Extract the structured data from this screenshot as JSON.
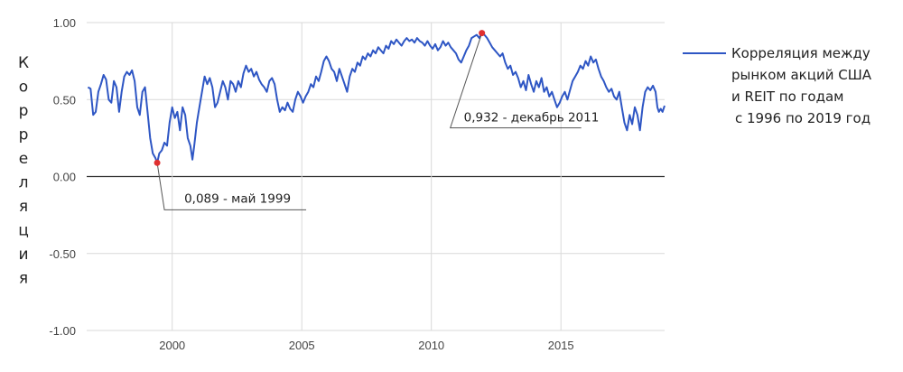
{
  "chart_data": {
    "type": "line",
    "ylabel": "Корреляция",
    "xlim": [
      1996.7,
      2019.0
    ],
    "ylim": [
      -1.0,
      1.0
    ],
    "grid": true,
    "legend_position": "right",
    "y_ticks": [
      {
        "value": 1.0,
        "label": "1.00"
      },
      {
        "value": 0.5,
        "label": "0.50"
      },
      {
        "value": 0.0,
        "label": "0.00"
      },
      {
        "value": -0.5,
        "label": "-0.50"
      },
      {
        "value": -1.0,
        "label": "-1.00"
      }
    ],
    "x_ticks": [
      {
        "value": 2000,
        "label": "2000"
      },
      {
        "value": 2005,
        "label": "2005"
      },
      {
        "value": 2010,
        "label": "2010"
      },
      {
        "value": 2015,
        "label": "2015"
      }
    ],
    "series": [
      {
        "name": "Корреляция между рынком акций США и REIT по годам с 1996 по 2019 год",
        "legend_lines": [
          "Корреляция между",
          "рынком акций США",
          "и REIT по годам",
          "с 1996 по 2019 год"
        ],
        "color": "#2e56c4",
        "points": [
          [
            1996.75,
            0.58
          ],
          [
            1996.85,
            0.57
          ],
          [
            1996.95,
            0.4
          ],
          [
            1997.05,
            0.42
          ],
          [
            1997.15,
            0.55
          ],
          [
            1997.25,
            0.6
          ],
          [
            1997.35,
            0.66
          ],
          [
            1997.45,
            0.63
          ],
          [
            1997.55,
            0.5
          ],
          [
            1997.65,
            0.48
          ],
          [
            1997.75,
            0.62
          ],
          [
            1997.85,
            0.58
          ],
          [
            1997.95,
            0.42
          ],
          [
            1998.05,
            0.55
          ],
          [
            1998.15,
            0.65
          ],
          [
            1998.25,
            0.68
          ],
          [
            1998.35,
            0.66
          ],
          [
            1998.45,
            0.69
          ],
          [
            1998.55,
            0.62
          ],
          [
            1998.65,
            0.45
          ],
          [
            1998.75,
            0.4
          ],
          [
            1998.85,
            0.55
          ],
          [
            1998.95,
            0.58
          ],
          [
            1999.05,
            0.42
          ],
          [
            1999.15,
            0.25
          ],
          [
            1999.25,
            0.15
          ],
          [
            1999.35,
            0.12
          ],
          [
            1999.42,
            0.089
          ],
          [
            1999.5,
            0.15
          ],
          [
            1999.6,
            0.17
          ],
          [
            1999.7,
            0.22
          ],
          [
            1999.8,
            0.2
          ],
          [
            1999.9,
            0.35
          ],
          [
            2000.0,
            0.45
          ],
          [
            2000.1,
            0.38
          ],
          [
            2000.2,
            0.42
          ],
          [
            2000.3,
            0.3
          ],
          [
            2000.4,
            0.45
          ],
          [
            2000.5,
            0.4
          ],
          [
            2000.6,
            0.25
          ],
          [
            2000.7,
            0.2
          ],
          [
            2000.78,
            0.11
          ],
          [
            2000.85,
            0.2
          ],
          [
            2000.95,
            0.35
          ],
          [
            2001.05,
            0.45
          ],
          [
            2001.15,
            0.55
          ],
          [
            2001.25,
            0.65
          ],
          [
            2001.35,
            0.6
          ],
          [
            2001.45,
            0.64
          ],
          [
            2001.55,
            0.58
          ],
          [
            2001.65,
            0.45
          ],
          [
            2001.75,
            0.48
          ],
          [
            2001.85,
            0.55
          ],
          [
            2001.95,
            0.62
          ],
          [
            2002.05,
            0.58
          ],
          [
            2002.15,
            0.5
          ],
          [
            2002.25,
            0.62
          ],
          [
            2002.35,
            0.6
          ],
          [
            2002.45,
            0.55
          ],
          [
            2002.55,
            0.62
          ],
          [
            2002.65,
            0.58
          ],
          [
            2002.75,
            0.67
          ],
          [
            2002.85,
            0.72
          ],
          [
            2002.95,
            0.68
          ],
          [
            2003.05,
            0.7
          ],
          [
            2003.15,
            0.65
          ],
          [
            2003.25,
            0.68
          ],
          [
            2003.35,
            0.63
          ],
          [
            2003.45,
            0.6
          ],
          [
            2003.55,
            0.58
          ],
          [
            2003.65,
            0.55
          ],
          [
            2003.75,
            0.62
          ],
          [
            2003.85,
            0.64
          ],
          [
            2003.95,
            0.6
          ],
          [
            2004.05,
            0.5
          ],
          [
            2004.15,
            0.42
          ],
          [
            2004.25,
            0.45
          ],
          [
            2004.35,
            0.43
          ],
          [
            2004.45,
            0.48
          ],
          [
            2004.55,
            0.44
          ],
          [
            2004.65,
            0.42
          ],
          [
            2004.75,
            0.5
          ],
          [
            2004.85,
            0.55
          ],
          [
            2004.95,
            0.52
          ],
          [
            2005.05,
            0.48
          ],
          [
            2005.15,
            0.52
          ],
          [
            2005.25,
            0.55
          ],
          [
            2005.35,
            0.6
          ],
          [
            2005.45,
            0.58
          ],
          [
            2005.55,
            0.65
          ],
          [
            2005.65,
            0.62
          ],
          [
            2005.75,
            0.68
          ],
          [
            2005.85,
            0.75
          ],
          [
            2005.95,
            0.78
          ],
          [
            2006.05,
            0.75
          ],
          [
            2006.15,
            0.7
          ],
          [
            2006.25,
            0.68
          ],
          [
            2006.35,
            0.62
          ],
          [
            2006.45,
            0.7
          ],
          [
            2006.55,
            0.65
          ],
          [
            2006.65,
            0.6
          ],
          [
            2006.75,
            0.55
          ],
          [
            2006.85,
            0.65
          ],
          [
            2006.95,
            0.7
          ],
          [
            2007.05,
            0.68
          ],
          [
            2007.15,
            0.74
          ],
          [
            2007.25,
            0.72
          ],
          [
            2007.35,
            0.78
          ],
          [
            2007.45,
            0.76
          ],
          [
            2007.55,
            0.8
          ],
          [
            2007.65,
            0.78
          ],
          [
            2007.75,
            0.82
          ],
          [
            2007.85,
            0.8
          ],
          [
            2007.95,
            0.84
          ],
          [
            2008.05,
            0.82
          ],
          [
            2008.15,
            0.8
          ],
          [
            2008.25,
            0.85
          ],
          [
            2008.35,
            0.83
          ],
          [
            2008.45,
            0.88
          ],
          [
            2008.55,
            0.86
          ],
          [
            2008.65,
            0.89
          ],
          [
            2008.75,
            0.87
          ],
          [
            2008.85,
            0.85
          ],
          [
            2008.95,
            0.88
          ],
          [
            2009.05,
            0.9
          ],
          [
            2009.15,
            0.88
          ],
          [
            2009.25,
            0.89
          ],
          [
            2009.35,
            0.87
          ],
          [
            2009.45,
            0.9
          ],
          [
            2009.55,
            0.88
          ],
          [
            2009.65,
            0.87
          ],
          [
            2009.75,
            0.85
          ],
          [
            2009.85,
            0.88
          ],
          [
            2009.95,
            0.85
          ],
          [
            2010.05,
            0.83
          ],
          [
            2010.15,
            0.86
          ],
          [
            2010.25,
            0.82
          ],
          [
            2010.35,
            0.84
          ],
          [
            2010.45,
            0.88
          ],
          [
            2010.55,
            0.85
          ],
          [
            2010.65,
            0.87
          ],
          [
            2010.75,
            0.84
          ],
          [
            2010.85,
            0.82
          ],
          [
            2010.95,
            0.8
          ],
          [
            2011.05,
            0.76
          ],
          [
            2011.15,
            0.74
          ],
          [
            2011.25,
            0.78
          ],
          [
            2011.35,
            0.82
          ],
          [
            2011.45,
            0.85
          ],
          [
            2011.55,
            0.9
          ],
          [
            2011.65,
            0.91
          ],
          [
            2011.75,
            0.92
          ],
          [
            2011.85,
            0.9
          ],
          [
            2011.95,
            0.932
          ],
          [
            2012.05,
            0.92
          ],
          [
            2012.15,
            0.9
          ],
          [
            2012.25,
            0.87
          ],
          [
            2012.35,
            0.84
          ],
          [
            2012.45,
            0.82
          ],
          [
            2012.55,
            0.8
          ],
          [
            2012.65,
            0.78
          ],
          [
            2012.75,
            0.8
          ],
          [
            2012.85,
            0.74
          ],
          [
            2012.95,
            0.7
          ],
          [
            2013.05,
            0.72
          ],
          [
            2013.15,
            0.66
          ],
          [
            2013.25,
            0.68
          ],
          [
            2013.35,
            0.64
          ],
          [
            2013.45,
            0.58
          ],
          [
            2013.55,
            0.62
          ],
          [
            2013.65,
            0.56
          ],
          [
            2013.75,
            0.66
          ],
          [
            2013.85,
            0.6
          ],
          [
            2013.95,
            0.55
          ],
          [
            2014.05,
            0.62
          ],
          [
            2014.15,
            0.58
          ],
          [
            2014.25,
            0.64
          ],
          [
            2014.35,
            0.55
          ],
          [
            2014.45,
            0.58
          ],
          [
            2014.55,
            0.52
          ],
          [
            2014.65,
            0.55
          ],
          [
            2014.75,
            0.5
          ],
          [
            2014.85,
            0.45
          ],
          [
            2014.95,
            0.48
          ],
          [
            2015.05,
            0.52
          ],
          [
            2015.15,
            0.55
          ],
          [
            2015.25,
            0.5
          ],
          [
            2015.35,
            0.56
          ],
          [
            2015.45,
            0.62
          ],
          [
            2015.55,
            0.65
          ],
          [
            2015.65,
            0.68
          ],
          [
            2015.75,
            0.72
          ],
          [
            2015.85,
            0.7
          ],
          [
            2015.95,
            0.75
          ],
          [
            2016.05,
            0.72
          ],
          [
            2016.15,
            0.78
          ],
          [
            2016.25,
            0.74
          ],
          [
            2016.35,
            0.76
          ],
          [
            2016.45,
            0.7
          ],
          [
            2016.55,
            0.65
          ],
          [
            2016.65,
            0.62
          ],
          [
            2016.75,
            0.58
          ],
          [
            2016.85,
            0.55
          ],
          [
            2016.95,
            0.57
          ],
          [
            2017.05,
            0.52
          ],
          [
            2017.15,
            0.5
          ],
          [
            2017.25,
            0.55
          ],
          [
            2017.35,
            0.45
          ],
          [
            2017.45,
            0.35
          ],
          [
            2017.55,
            0.3
          ],
          [
            2017.65,
            0.4
          ],
          [
            2017.75,
            0.34
          ],
          [
            2017.85,
            0.45
          ],
          [
            2017.95,
            0.4
          ],
          [
            2018.05,
            0.3
          ],
          [
            2018.15,
            0.45
          ],
          [
            2018.25,
            0.55
          ],
          [
            2018.35,
            0.58
          ],
          [
            2018.45,
            0.56
          ],
          [
            2018.55,
            0.59
          ],
          [
            2018.65,
            0.55
          ],
          [
            2018.72,
            0.45
          ],
          [
            2018.78,
            0.42
          ],
          [
            2018.85,
            0.44
          ],
          [
            2018.92,
            0.42
          ],
          [
            2019.0,
            0.46
          ]
        ]
      }
    ],
    "annotations": [
      {
        "text": "0,089 - май  1999",
        "x": 1999.42,
        "y": 0.089,
        "marker_color": "#e03030"
      },
      {
        "text": "0,932 - декабрь 2011",
        "x": 2011.95,
        "y": 0.932,
        "marker_color": "#e03030"
      }
    ]
  }
}
